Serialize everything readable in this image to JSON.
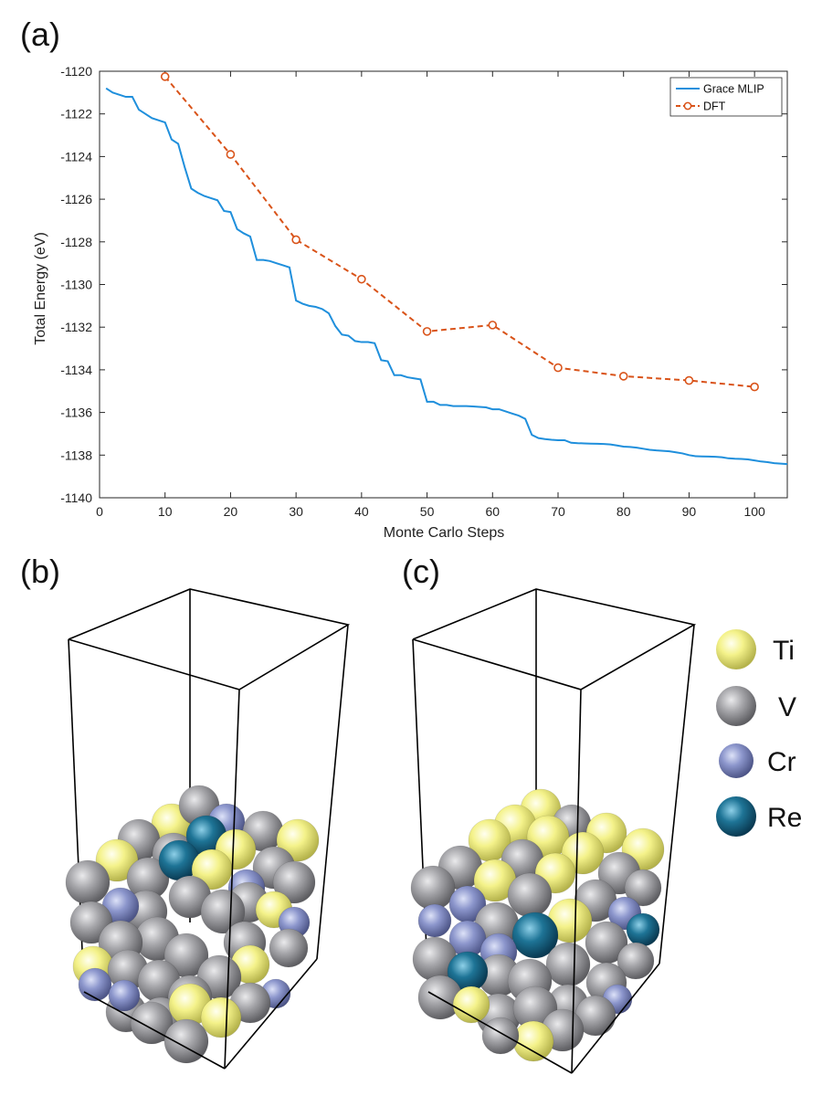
{
  "figure": {
    "panel_labels": {
      "a": "(a)",
      "b": "(b)",
      "c": "(c)"
    }
  },
  "chart_data": {
    "type": "line",
    "title": "",
    "xlabel": "Monte Carlo Steps",
    "ylabel": "Total Energy (eV)",
    "xlim": [
      0,
      105
    ],
    "ylim": [
      -1140,
      -1120
    ],
    "xticks": [
      0,
      10,
      20,
      30,
      40,
      50,
      60,
      70,
      80,
      90,
      100
    ],
    "yticks": [
      -1140,
      -1138,
      -1136,
      -1134,
      -1132,
      -1130,
      -1128,
      -1126,
      -1124,
      -1122,
      -1120
    ],
    "legend_position": "top-right",
    "series": [
      {
        "name": "Grace MLIP",
        "color": "#1f8fdc",
        "style": "solid",
        "marker": "none",
        "x": [
          1,
          2,
          3,
          4,
          5,
          6,
          7,
          8,
          9,
          10,
          11,
          12,
          13,
          14,
          15,
          16,
          17,
          18,
          19,
          20,
          21,
          22,
          23,
          24,
          25,
          26,
          27,
          28,
          29,
          30,
          31,
          32,
          33,
          34,
          35,
          36,
          37,
          38,
          39,
          40,
          41,
          42,
          43,
          44,
          45,
          46,
          47,
          48,
          49,
          50,
          51,
          52,
          53,
          54,
          55,
          56,
          57,
          58,
          59,
          60,
          61,
          62,
          63,
          64,
          65,
          66,
          67,
          68,
          69,
          70,
          71,
          72,
          73,
          74,
          75,
          76,
          77,
          78,
          79,
          80,
          81,
          82,
          83,
          84,
          85,
          86,
          87,
          88,
          89,
          90,
          91,
          92,
          93,
          94,
          95,
          96,
          97,
          98,
          99,
          100,
          101,
          102,
          103,
          104,
          105
        ],
        "y": [
          -1120.8,
          -1121.0,
          -1121.1,
          -1121.2,
          -1121.2,
          -1121.8,
          -1122.0,
          -1122.2,
          -1122.3,
          -1122.4,
          -1123.2,
          -1123.4,
          -1124.5,
          -1125.5,
          -1125.7,
          -1125.85,
          -1125.95,
          -1126.05,
          -1126.55,
          -1126.6,
          -1127.4,
          -1127.6,
          -1127.75,
          -1128.85,
          -1128.85,
          -1128.9,
          -1129.0,
          -1129.1,
          -1129.2,
          -1130.75,
          -1130.9,
          -1131.0,
          -1131.05,
          -1131.15,
          -1131.35,
          -1131.95,
          -1132.35,
          -1132.4,
          -1132.65,
          -1132.7,
          -1132.7,
          -1132.75,
          -1133.55,
          -1133.6,
          -1134.25,
          -1134.25,
          -1134.35,
          -1134.4,
          -1134.45,
          -1135.5,
          -1135.5,
          -1135.65,
          -1135.65,
          -1135.7,
          -1135.7,
          -1135.7,
          -1135.72,
          -1135.74,
          -1135.76,
          -1135.85,
          -1135.85,
          -1135.95,
          -1136.05,
          -1136.15,
          -1136.3,
          -1137.05,
          -1137.2,
          -1137.25,
          -1137.28,
          -1137.3,
          -1137.3,
          -1137.42,
          -1137.44,
          -1137.45,
          -1137.46,
          -1137.47,
          -1137.48,
          -1137.5,
          -1137.55,
          -1137.6,
          -1137.62,
          -1137.65,
          -1137.7,
          -1137.75,
          -1137.78,
          -1137.8,
          -1137.82,
          -1137.87,
          -1137.92,
          -1138.0,
          -1138.05,
          -1138.06,
          -1138.07,
          -1138.08,
          -1138.1,
          -1138.15,
          -1138.17,
          -1138.18,
          -1138.2,
          -1138.25,
          -1138.3,
          -1138.33,
          -1138.38,
          -1138.4,
          -1138.42
        ]
      },
      {
        "name": "DFT",
        "color": "#d95319",
        "style": "dashed",
        "marker": "circle",
        "x": [
          10,
          20,
          30,
          40,
          50,
          60,
          70,
          80,
          90,
          100
        ],
        "y": [
          -1120.25,
          -1123.9,
          -1127.9,
          -1129.75,
          -1132.2,
          -1131.9,
          -1133.9,
          -1134.3,
          -1134.5,
          -1134.8
        ]
      }
    ]
  },
  "structures": {
    "legend": [
      {
        "label": "Ti",
        "color": "#f2f08a"
      },
      {
        "label": "V",
        "color": "#a4a4a8"
      },
      {
        "label": "Cr",
        "color": "#8a94c8"
      },
      {
        "label": "Re",
        "color": "#1d6e8e"
      }
    ]
  }
}
